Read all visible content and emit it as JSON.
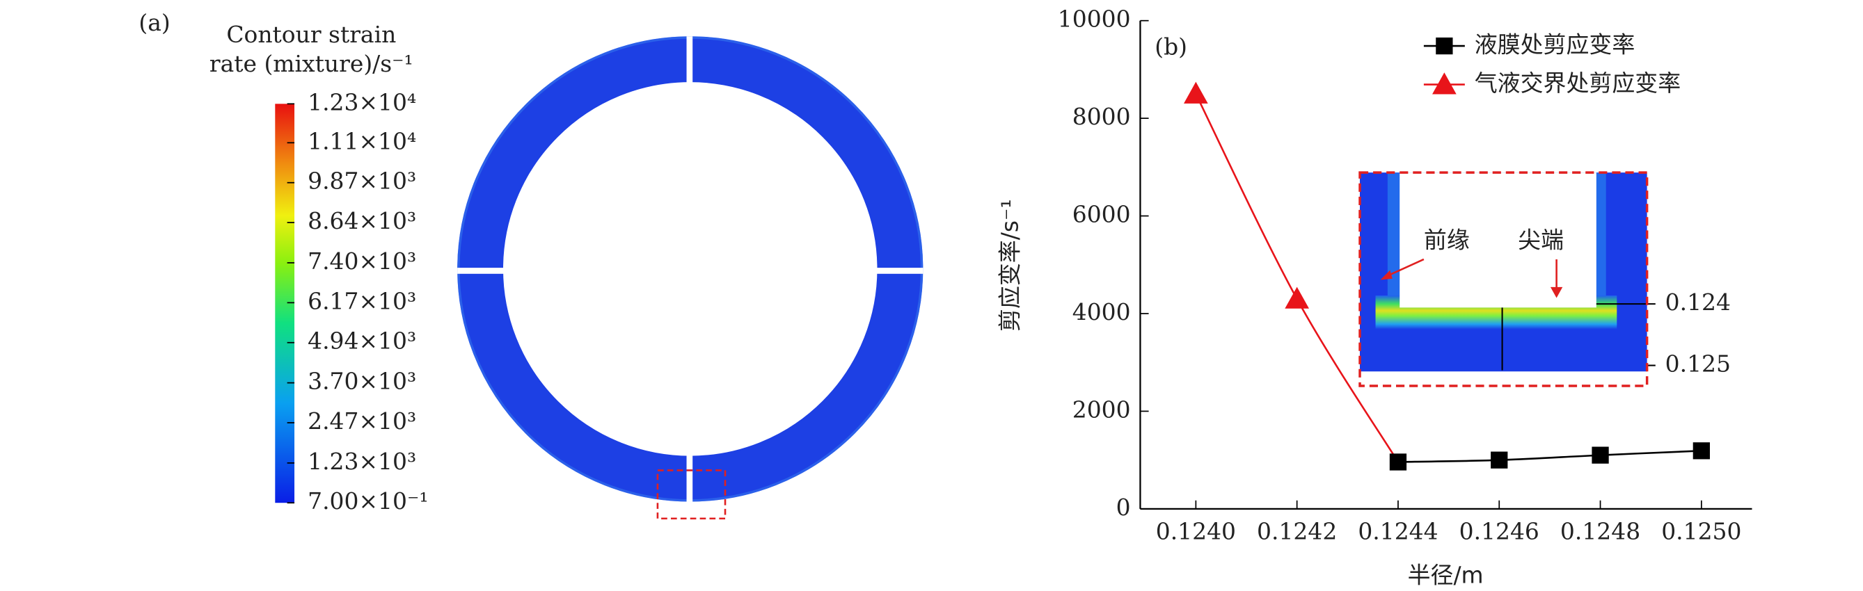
{
  "chart_data": [
    {
      "type": "contour",
      "panel_label": "(a)",
      "title_lines": [
        "Contour strain",
        "rate (mixture)/s⁻¹"
      ],
      "clim": [
        0.7,
        12300
      ],
      "colorbar_ticks": [
        {
          "value": 12300,
          "label": "1.23×10⁴"
        },
        {
          "value": 11100,
          "label": "1.11×10⁴"
        },
        {
          "value": 9870,
          "label": "9.87×10³"
        },
        {
          "value": 8640,
          "label": "8.64×10³"
        },
        {
          "value": 7400,
          "label": "7.40×10³"
        },
        {
          "value": 6170,
          "label": "6.17×10³"
        },
        {
          "value": 4940,
          "label": "4.94×10³"
        },
        {
          "value": 3700,
          "label": "3.70×10³"
        },
        {
          "value": 2470,
          "label": "2.47×10³"
        },
        {
          "value": 1230,
          "label": "1.23×10³"
        },
        {
          "value": 0.7,
          "label": "7.00×10⁻¹"
        }
      ]
    },
    {
      "type": "line",
      "panel_label": "(b)",
      "x_label": "半径/m",
      "y_label": "剪应变率/s⁻¹",
      "xlim": [
        0.12389,
        0.1251
      ],
      "ylim": [
        0,
        10000
      ],
      "xticks": [
        {
          "value": 0.124,
          "label": "0.1240"
        },
        {
          "value": 0.1242,
          "label": "0.1242"
        },
        {
          "value": 0.1244,
          "label": "0.1244"
        },
        {
          "value": 0.1246,
          "label": "0.1246"
        },
        {
          "value": 0.1248,
          "label": "0.1248"
        },
        {
          "value": 0.125,
          "label": "0.1250"
        }
      ],
      "yticks": [
        0,
        2000,
        4000,
        6000,
        8000,
        10000
      ],
      "series": [
        {
          "name": "液膜处剪应变率",
          "color": "#000000",
          "marker": "square",
          "x": [
            0.1244,
            0.1246,
            0.1248,
            0.125
          ],
          "values": [
            960,
            1000,
            1100,
            1190
          ]
        },
        {
          "name": "气液交界处剪应变率",
          "color": "#e8141a",
          "marker": "triangle",
          "x": [
            0.124,
            0.1242
          ],
          "values": [
            8500,
            4300
          ]
        }
      ],
      "inset": {
        "labels": [
          "前缘",
          "尖端"
        ],
        "levels": [
          0.124,
          0.125
        ]
      }
    }
  ]
}
